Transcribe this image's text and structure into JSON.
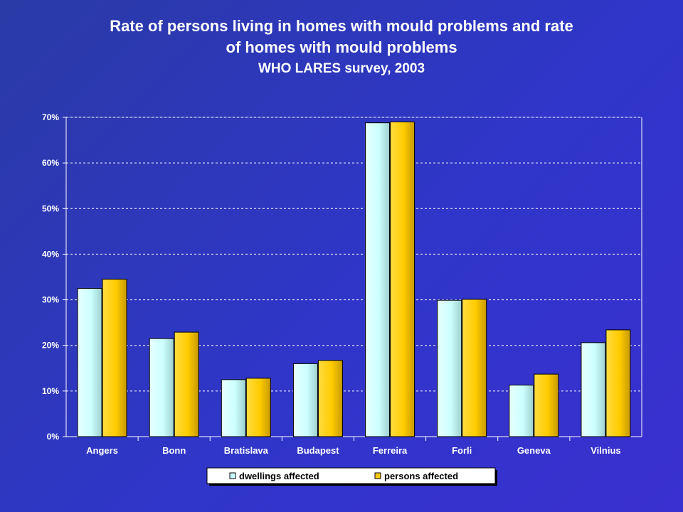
{
  "title_line1": "Rate of persons living in homes with mould problems and rate",
  "title_line2": "of homes with mould problems",
  "subtitle": "WHO LARES survey, 2003",
  "colors": {
    "dwellings": "#ccffff",
    "persons": "#ffcc00",
    "grid": "#ffffff",
    "axis_text": "#ffffff"
  },
  "chart_data": {
    "type": "bar",
    "title": "Rate of persons living in homes with mould problems and rate of homes with mould problems",
    "subtitle": "WHO LARES survey, 2003",
    "categories": [
      "Angers",
      "Bonn",
      "Bratislava",
      "Budapest",
      "Ferreira",
      "Forli",
      "Geneva",
      "Vilnius"
    ],
    "series": [
      {
        "name": "dwellings affected",
        "values": [
          32.5,
          21.5,
          12.5,
          16.0,
          68.8,
          29.9,
          11.3,
          20.6
        ]
      },
      {
        "name": "persons affected",
        "values": [
          34.5,
          22.9,
          12.8,
          16.7,
          69.0,
          30.1,
          13.7,
          23.4
        ]
      }
    ],
    "ylim": [
      0,
      70
    ],
    "yticks": [
      "0%",
      "10%",
      "20%",
      "30%",
      "40%",
      "50%",
      "60%",
      "70%"
    ],
    "grid": true,
    "legend": "bottom"
  }
}
